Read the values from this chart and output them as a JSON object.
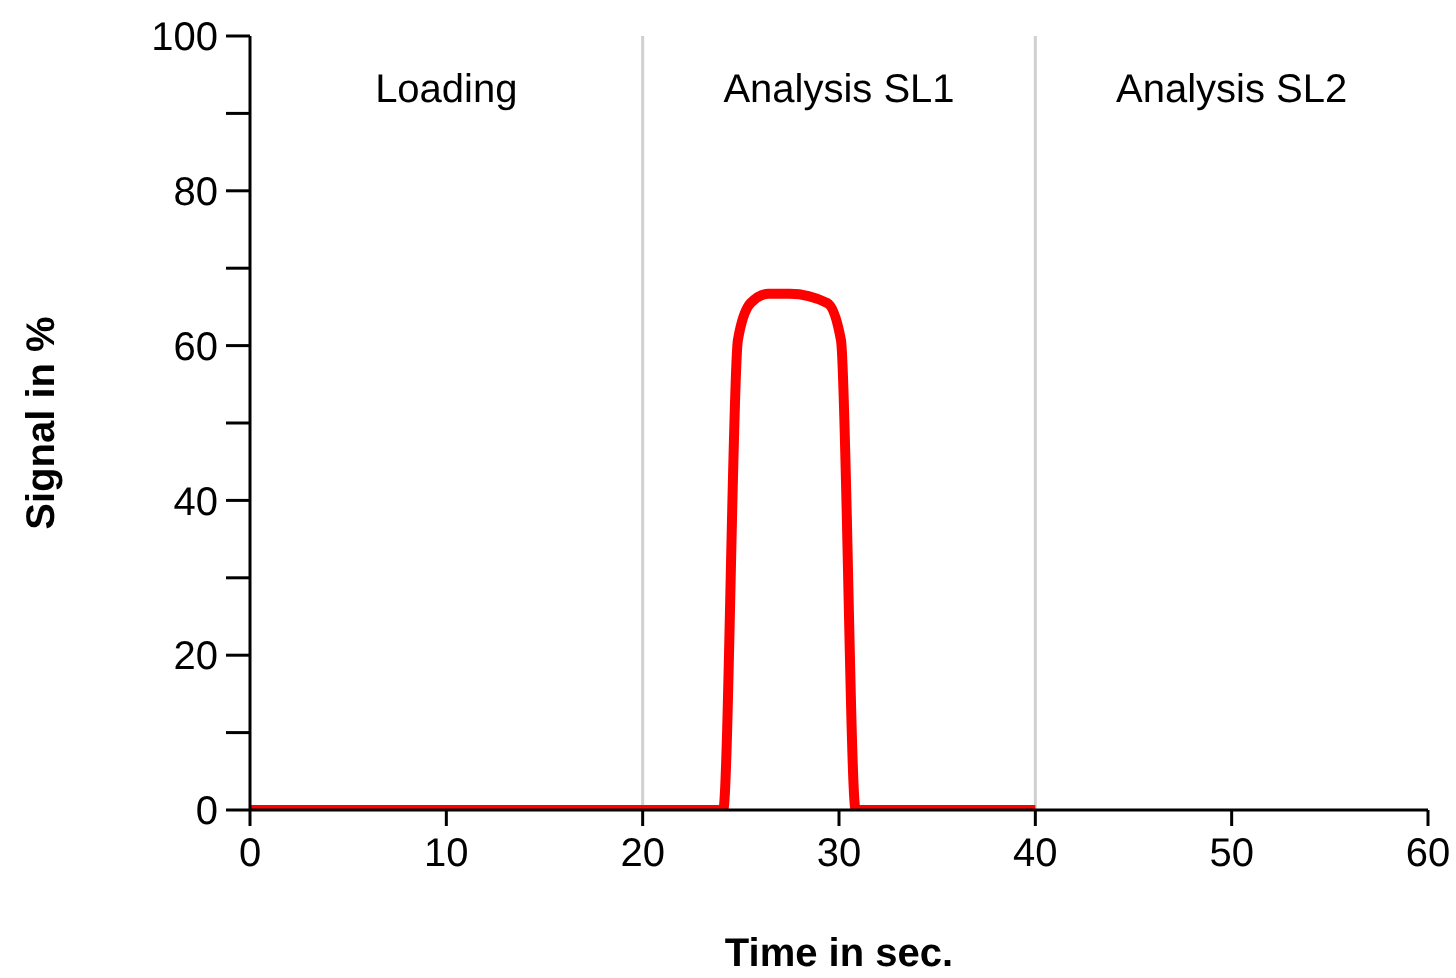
{
  "chart_data": {
    "type": "line",
    "xlabel": "Time in sec.",
    "ylabel": "Signal in %",
    "x": [
      0,
      24.1,
      24.85,
      25.5,
      26.4,
      27.5,
      29.4,
      30.1,
      30.85,
      40
    ],
    "series": [
      {
        "color": "#ff0000",
        "values": [
          0,
          0,
          60.7,
          65.5,
          66.7,
          66.7,
          65.5,
          60.7,
          0,
          0
        ]
      }
    ],
    "xlim": [
      0,
      60
    ],
    "xticks": [
      0,
      10,
      20,
      30,
      40,
      50,
      60
    ],
    "ylim": [
      0,
      100
    ],
    "yticks": [
      0,
      {
        "value": 10,
        "label": null
      },
      20,
      {
        "value": 30,
        "label": null
      },
      40,
      {
        "value": 50,
        "label": null
      },
      60,
      {
        "value": 70,
        "label": null
      },
      80,
      {
        "value": 90,
        "label": null
      },
      100
    ],
    "ref_lines": [
      {
        "axis": "x",
        "value": 20,
        "color": "#d0d0d0"
      },
      {
        "axis": "x",
        "value": 40,
        "color": "#d0d0d0"
      }
    ],
    "annotations": [
      "Loading",
      "Analysis SL1",
      "Analysis SL2"
    ],
    "grid": false,
    "legend": false,
    "marker": "none",
    "line_style": "solid"
  }
}
